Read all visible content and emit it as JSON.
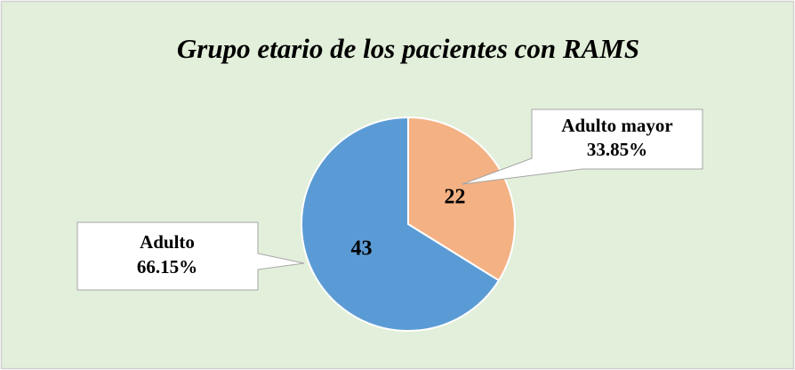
{
  "chart_data": {
    "type": "pie",
    "title": "Grupo etario de los pacientes con RAMS",
    "categories": [
      "Adulto",
      "Adulto mayor"
    ],
    "values": [
      43,
      22
    ],
    "percentages": [
      {
        "value": 66.15,
        "label": "66.15%"
      },
      {
        "value": 33.85,
        "label": "33.85%"
      }
    ],
    "colors": [
      "#5b9bd5",
      "#f4b183"
    ]
  }
}
